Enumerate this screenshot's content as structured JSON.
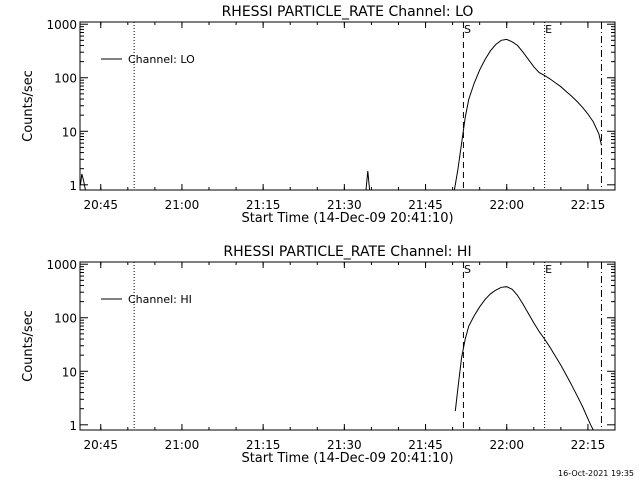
{
  "footer_timestamp": "16-Oct-2021 19:35",
  "chart_data": [
    {
      "type": "line",
      "title": "RHESSI PARTICLE_RATE Channel: LO",
      "xlabel": "Start Time (14-Dec-09 20:41:10)",
      "ylabel": "Counts/sec",
      "xlim": [
        "20:41:10",
        "22:20:00"
      ],
      "ylim": [
        0.8,
        1100
      ],
      "y_scale": "log",
      "x_ticks": [
        "20:45",
        "21:00",
        "21:15",
        "21:30",
        "21:45",
        "22:00",
        "22:15"
      ],
      "y_ticks": [
        "1",
        "10",
        "100",
        "1000"
      ],
      "legend": {
        "label": "Channel: LO",
        "position": "top-left"
      },
      "markers": [
        {
          "time": "20:51:10",
          "style": "dotted",
          "label": ""
        },
        {
          "time": "21:52:00",
          "style": "dashed",
          "label": "S"
        },
        {
          "time": "22:07:00",
          "style": "dotted",
          "label": "E"
        },
        {
          "time": "22:17:30",
          "style": "dashdot",
          "label": ""
        }
      ],
      "series": [
        {
          "name": "Channel: LO",
          "segments": [
            {
              "x": [
                "20:41:15",
                "20:41:30",
                "20:41:50",
                "20:42:10"
              ],
              "y": [
                1,
                1.6,
                1.2,
                0.8
              ]
            },
            {
              "x": [
                "21:34:00",
                "21:34:20",
                "21:34:40"
              ],
              "y": [
                0.8,
                1.8,
                0.8
              ]
            },
            {
              "x": [
                "21:50:20",
                "21:51:00",
                "21:51:40",
                "21:52:20",
                "21:53:00",
                "21:54:00",
                "21:55:00",
                "21:56:00",
                "21:57:00",
                "21:58:00",
                "21:59:00",
                "22:00:00",
                "22:01:00",
                "22:02:00",
                "22:03:00",
                "22:04:00",
                "22:05:00",
                "22:06:00",
                "22:07:00",
                "22:08:00",
                "22:09:00",
                "22:10:00",
                "22:11:00",
                "22:12:00",
                "22:13:00",
                "22:14:00",
                "22:15:00",
                "22:16:00",
                "22:17:00",
                "22:17:30"
              ],
              "y": [
                0.8,
                2,
                6,
                18,
                40,
                80,
                140,
                220,
                320,
                420,
                500,
                520,
                470,
                400,
                300,
                220,
                160,
                125,
                110,
                95,
                80,
                68,
                55,
                45,
                36,
                28,
                21,
                15,
                9,
                5.5
              ]
            }
          ]
        }
      ]
    },
    {
      "type": "line",
      "title": "RHESSI PARTICLE_RATE Channel: HI",
      "xlabel": "Start Time (14-Dec-09 20:41:10)",
      "ylabel": "Counts/sec",
      "xlim": [
        "20:41:10",
        "22:20:00"
      ],
      "ylim": [
        0.8,
        1100
      ],
      "y_scale": "log",
      "x_ticks": [
        "20:45",
        "21:00",
        "21:15",
        "21:30",
        "21:45",
        "22:00",
        "22:15"
      ],
      "y_ticks": [
        "1",
        "10",
        "100",
        "1000"
      ],
      "legend": {
        "label": "Channel: HI",
        "position": "top-left"
      },
      "markers": [
        {
          "time": "20:51:10",
          "style": "dotted",
          "label": ""
        },
        {
          "time": "21:52:00",
          "style": "dashed",
          "label": "S"
        },
        {
          "time": "22:07:00",
          "style": "dotted",
          "label": "E"
        },
        {
          "time": "22:17:30",
          "style": "dashdot",
          "label": ""
        }
      ],
      "series": [
        {
          "name": "Channel: HI",
          "segments": [
            {
              "x": [
                "21:50:30",
                "21:51:00",
                "21:51:40",
                "21:52:20",
                "21:53:00",
                "21:54:00",
                "21:55:00",
                "21:56:00",
                "21:57:00",
                "21:58:00",
                "21:59:00",
                "22:00:00",
                "22:01:00",
                "22:02:00",
                "22:03:00",
                "22:04:00",
                "22:05:00",
                "22:06:00",
                "22:07:00",
                "22:08:00",
                "22:09:00",
                "22:10:00",
                "22:11:00",
                "22:12:00",
                "22:13:00",
                "22:14:00",
                "22:15:00",
                "22:15:30",
                "22:16:00"
              ],
              "y": [
                1.8,
                5,
                18,
                40,
                70,
                110,
                160,
                220,
                280,
                330,
                370,
                380,
                340,
                260,
                180,
                120,
                80,
                55,
                40,
                28,
                19,
                13,
                8.5,
                5.5,
                3.5,
                2.2,
                1.3,
                1,
                0.8
              ]
            }
          ]
        }
      ]
    }
  ]
}
